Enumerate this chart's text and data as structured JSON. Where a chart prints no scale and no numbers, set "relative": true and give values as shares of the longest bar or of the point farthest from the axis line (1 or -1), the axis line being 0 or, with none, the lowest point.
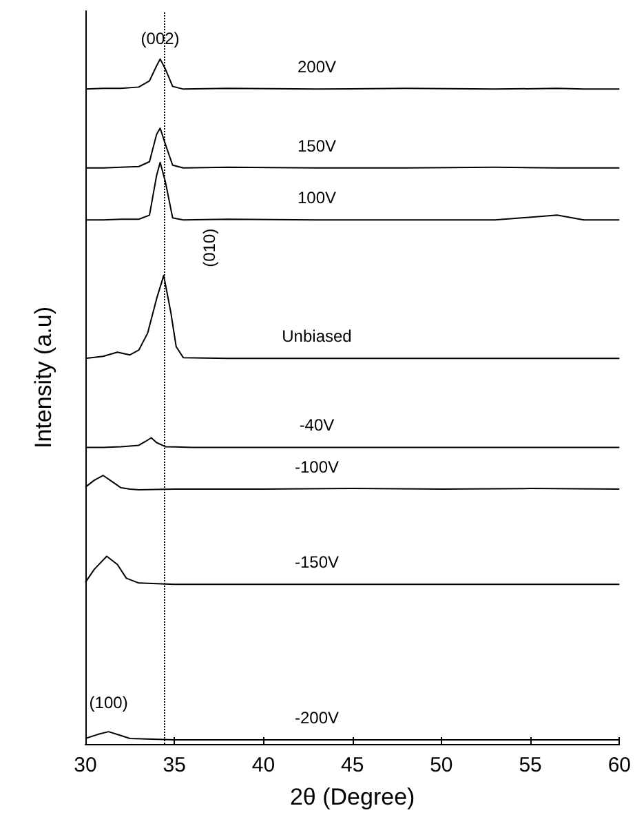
{
  "chart_data": {
    "type": "line",
    "relative": true,
    "xlabel": "2θ (Degree)",
    "ylabel": "Intensity (a.u)",
    "xlim": [
      30,
      60
    ],
    "xticks": [
      30,
      35,
      40,
      45,
      50,
      55,
      60
    ],
    "grid": false,
    "legend": false,
    "marker": "none",
    "line_style": "solid",
    "series": [
      {
        "name": "200V",
        "color": "#000000",
        "x": [
          30,
          31,
          32,
          33,
          33.6,
          34.0,
          34.2,
          34.5,
          34.9,
          35.5,
          38,
          43,
          48,
          53,
          56.5,
          58,
          60
        ],
        "values": [
          0.956,
          0.957,
          0.957,
          0.959,
          0.968,
          0.99,
          1.0,
          0.985,
          0.96,
          0.956,
          0.957,
          0.956,
          0.957,
          0.956,
          0.957,
          0.956,
          0.956
        ]
      },
      {
        "name": "150V",
        "color": "#000000",
        "x": [
          30,
          31,
          32,
          33,
          33.6,
          34.0,
          34.2,
          34.5,
          34.9,
          35.5,
          38,
          43,
          48,
          53,
          56.5,
          58,
          60
        ],
        "values": [
          0.841,
          0.841,
          0.842,
          0.843,
          0.85,
          0.89,
          0.899,
          0.875,
          0.845,
          0.841,
          0.842,
          0.841,
          0.841,
          0.842,
          0.841,
          0.841,
          0.841
        ]
      },
      {
        "name": "100V",
        "color": "#000000",
        "x": [
          30,
          31,
          32,
          33,
          33.6,
          34.0,
          34.2,
          34.5,
          34.9,
          35.5,
          38,
          43,
          48,
          53,
          56.5,
          58,
          60
        ],
        "values": [
          0.765,
          0.765,
          0.766,
          0.766,
          0.772,
          0.83,
          0.849,
          0.82,
          0.768,
          0.765,
          0.766,
          0.765,
          0.765,
          0.765,
          0.772,
          0.765,
          0.765
        ]
      },
      {
        "name": "Unbiased",
        "color": "#000000",
        "x": [
          30,
          31,
          31.8,
          32.5,
          33,
          33.5,
          34.0,
          34.4,
          34.8,
          35.1,
          35.5,
          38,
          43,
          48,
          53,
          58,
          60
        ],
        "values": [
          0.563,
          0.566,
          0.572,
          0.568,
          0.575,
          0.6,
          0.65,
          0.684,
          0.63,
          0.58,
          0.564,
          0.563,
          0.563,
          0.563,
          0.563,
          0.563,
          0.563
        ]
      },
      {
        "name": "-40V",
        "color": "#000000",
        "x": [
          30,
          31,
          32,
          33,
          33.4,
          33.7,
          34.0,
          34.5,
          36,
          43,
          50,
          60
        ],
        "values": [
          0.433,
          0.433,
          0.434,
          0.436,
          0.442,
          0.447,
          0.44,
          0.434,
          0.433,
          0.433,
          0.433,
          0.433
        ]
      },
      {
        "name": "-100V",
        "color": "#000000",
        "x": [
          30,
          30.5,
          31.0,
          31.5,
          32,
          32.5,
          33,
          35,
          40,
          45,
          50,
          55,
          60
        ],
        "values": [
          0.375,
          0.385,
          0.392,
          0.383,
          0.374,
          0.372,
          0.371,
          0.372,
          0.372,
          0.373,
          0.372,
          0.373,
          0.372
        ]
      },
      {
        "name": "-150V",
        "color": "#000000",
        "x": [
          30,
          30.5,
          31.2,
          31.8,
          32.3,
          33,
          35,
          40,
          50,
          60
        ],
        "values": [
          0.236,
          0.255,
          0.274,
          0.262,
          0.242,
          0.235,
          0.233,
          0.233,
          0.233,
          0.233
        ]
      },
      {
        "name": "-200V",
        "color": "#000000",
        "x": [
          30,
          30.7,
          31.3,
          31.9,
          32.5,
          35,
          45,
          60
        ],
        "values": [
          0.008,
          0.014,
          0.018,
          0.013,
          0.008,
          0.006,
          0.006,
          0.006
        ]
      }
    ],
    "ref_lines": [
      {
        "axis": "x",
        "value": 34.4,
        "line_style": "dotted",
        "color": "#000000"
      }
    ],
    "annotations": [
      {
        "text": "(002)",
        "x": 34.2,
        "y": 1.03
      },
      {
        "text": "(010)",
        "x": 34.4,
        "y": 0.684
      },
      {
        "text": "(100)",
        "x": 31.3,
        "y": 0.018
      }
    ]
  }
}
